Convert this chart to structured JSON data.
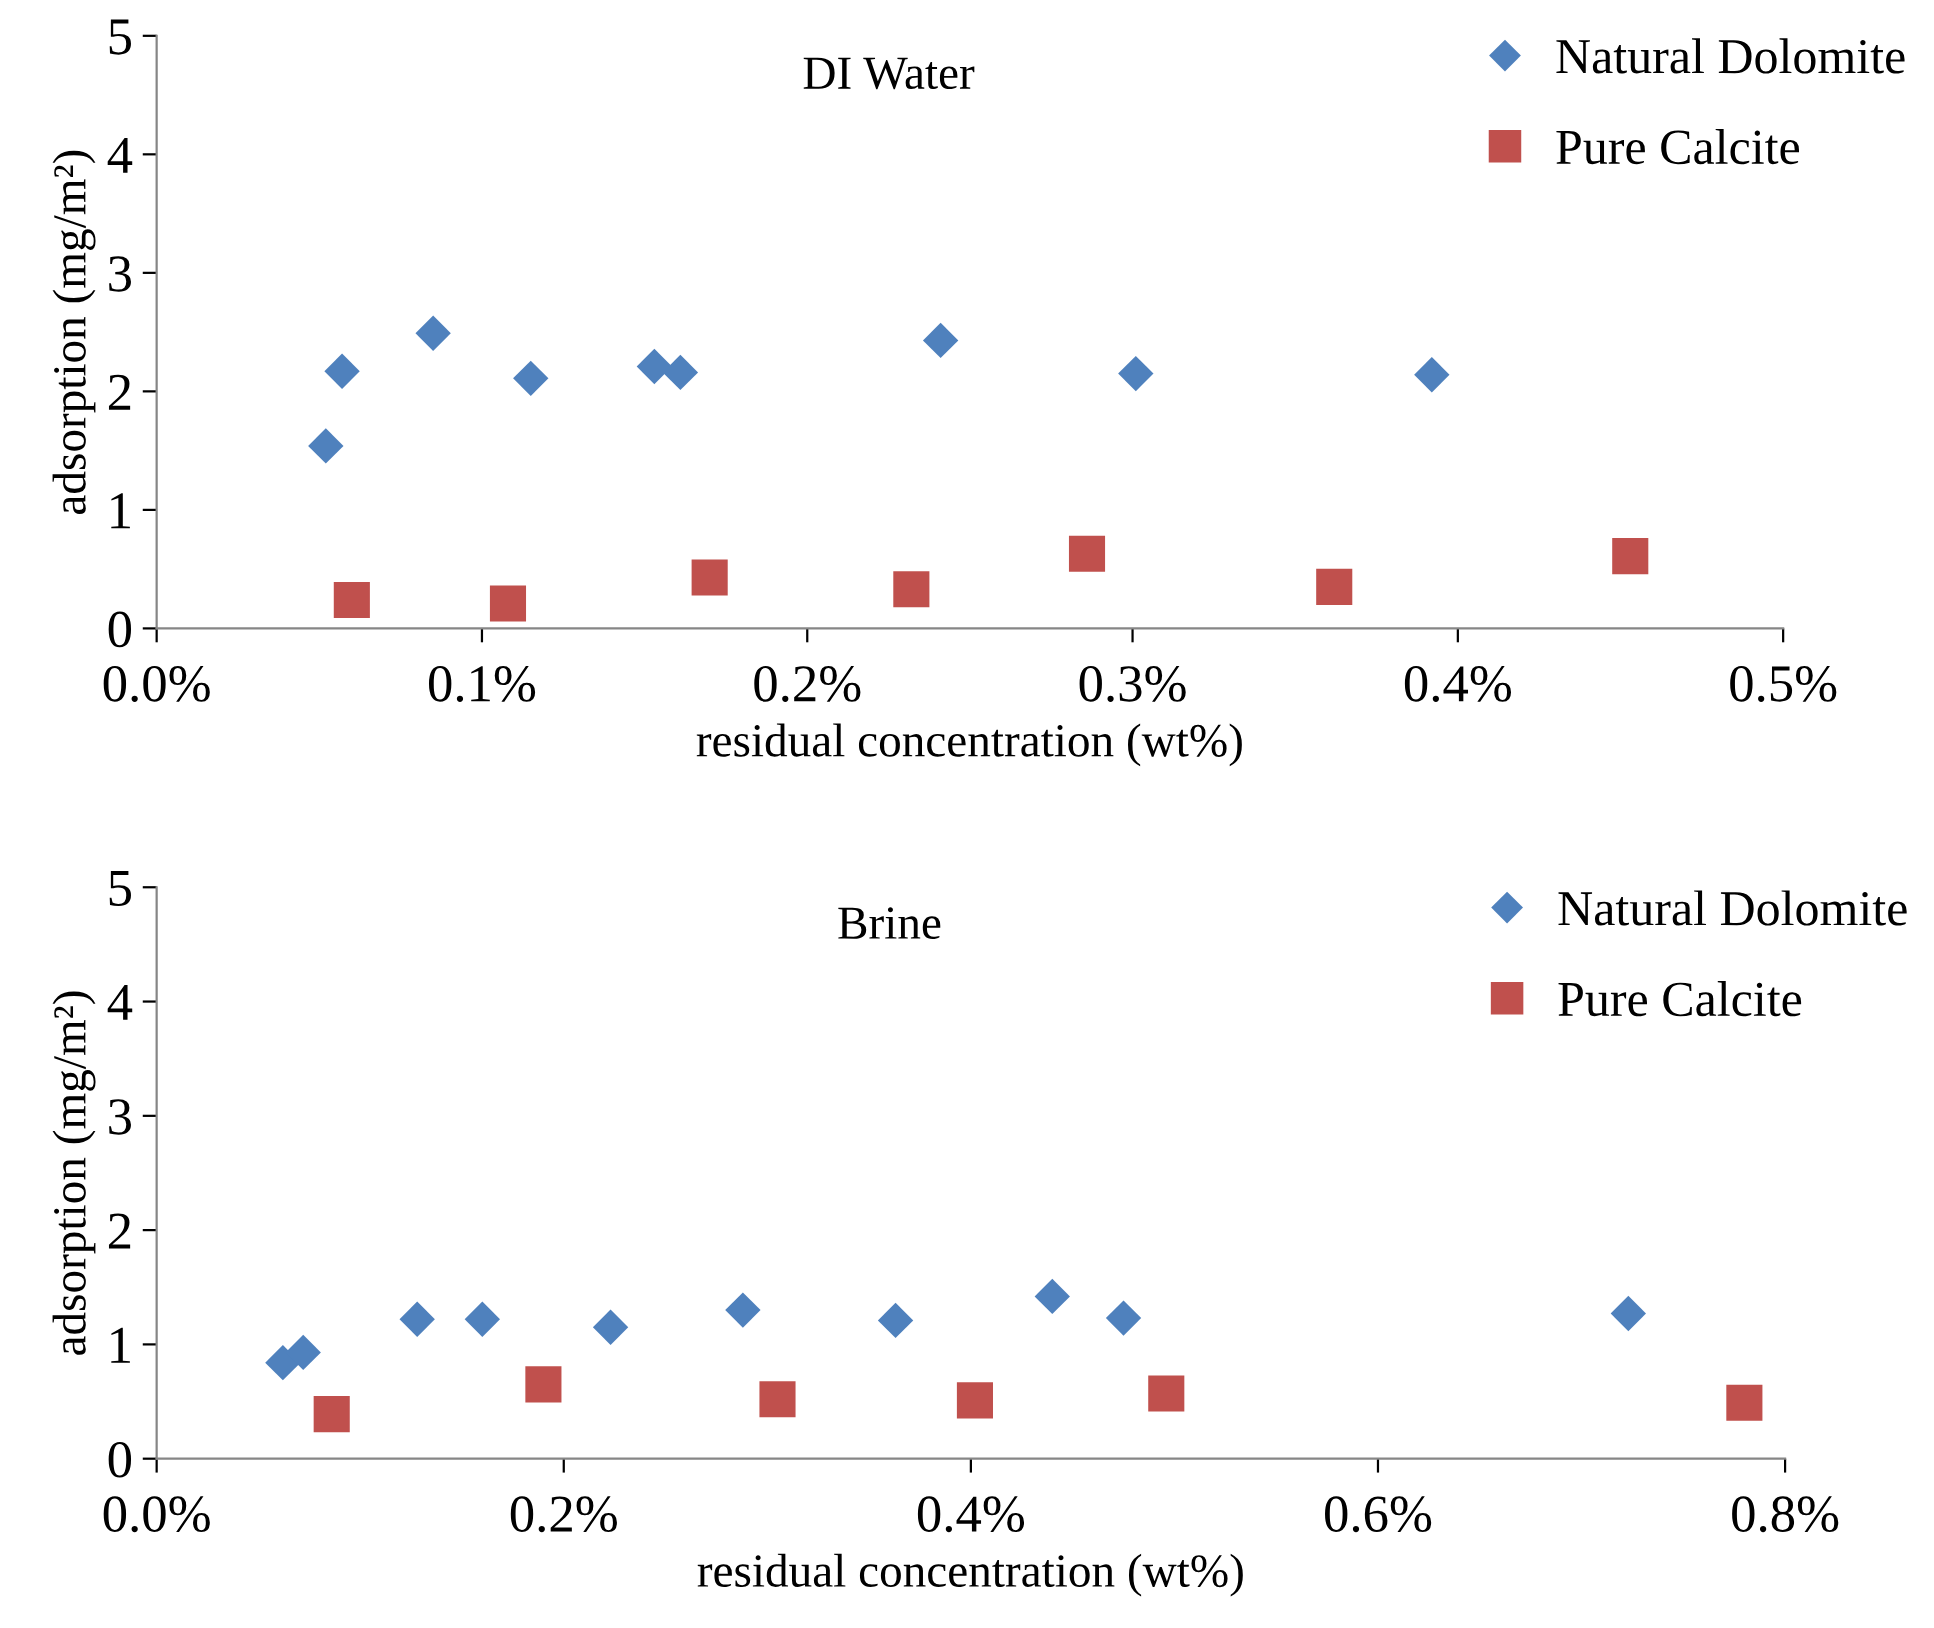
{
  "chart_data": [
    {
      "type": "scatter",
      "title": "DI Water",
      "xlabel": "residual concentration (wt%)",
      "ylabel": "adsorption (mg/m²)",
      "xlim": [
        0,
        0.5
      ],
      "xticks": [
        {
          "value": 0,
          "label": "0.0%"
        },
        {
          "value": 0.1,
          "label": "0.1%"
        },
        {
          "value": 0.2,
          "label": "0.2%"
        },
        {
          "value": 0.3,
          "label": "0.3%"
        },
        {
          "value": 0.4,
          "label": "0.4%"
        },
        {
          "value": 0.5,
          "label": "0.5%"
        }
      ],
      "ylim": [
        0,
        5
      ],
      "yticks": [
        0,
        1,
        2,
        3,
        4,
        5
      ],
      "grid": false,
      "legend": "top right",
      "series": [
        {
          "name": "Natural Dolomite",
          "color": "#4f81bd",
          "marker": "diamond",
          "x": [
            0.052,
            0.057,
            0.085,
            0.115,
            0.153,
            0.161,
            0.241,
            0.301,
            0.392
          ],
          "values": [
            1.54,
            2.17,
            2.49,
            2.11,
            2.21,
            2.16,
            2.43,
            2.15,
            2.14
          ]
        },
        {
          "name": "Pure Calcite",
          "color": "#c0504d",
          "marker": "square",
          "x": [
            0.06,
            0.108,
            0.17,
            0.232,
            0.286,
            0.362,
            0.453
          ],
          "values": [
            0.24,
            0.21,
            0.43,
            0.33,
            0.63,
            0.35,
            0.61
          ]
        }
      ]
    },
    {
      "type": "scatter",
      "title": "Brine",
      "xlabel": "residual concentration (wt%)",
      "ylabel": "adsorption (mg/m²)",
      "xlim": [
        0,
        0.8
      ],
      "xticks": [
        {
          "value": 0,
          "label": "0.0%"
        },
        {
          "value": 0.2,
          "label": "0.2%"
        },
        {
          "value": 0.4,
          "label": "0.4%"
        },
        {
          "value": 0.6,
          "label": "0.6%"
        },
        {
          "value": 0.8,
          "label": "0.8%"
        }
      ],
      "ylim": [
        0,
        5
      ],
      "yticks": [
        0,
        1,
        2,
        3,
        4,
        5
      ],
      "grid": false,
      "legend": "top right",
      "series": [
        {
          "name": "Natural Dolomite",
          "color": "#4f81bd",
          "marker": "diamond",
          "x": [
            0.062,
            0.072,
            0.128,
            0.16,
            0.223,
            0.288,
            0.363,
            0.44,
            0.475,
            0.723
          ],
          "values": [
            0.84,
            0.93,
            1.22,
            1.22,
            1.15,
            1.3,
            1.21,
            1.42,
            1.23,
            1.27
          ]
        },
        {
          "name": "Pure Calcite",
          "color": "#c0504d",
          "marker": "square",
          "x": [
            0.086,
            0.19,
            0.305,
            0.402,
            0.496,
            0.78
          ],
          "values": [
            0.39,
            0.65,
            0.52,
            0.51,
            0.57,
            0.49
          ]
        }
      ]
    }
  ]
}
